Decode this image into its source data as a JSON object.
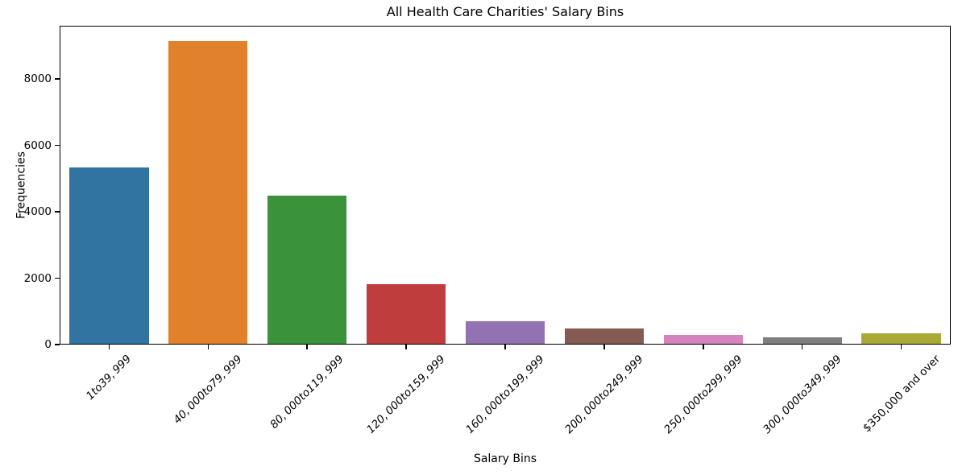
{
  "chart_data": {
    "type": "bar",
    "title": "All Health Care Charities' Salary Bins",
    "xlabel": "Salary Bins",
    "ylabel": "Frequencies",
    "categories": [
      "1to39, 999",
      "40, 000to79, 999",
      "80, 000to119, 999",
      "120, 000to159, 999",
      "160, 000to199, 999",
      "200, 000to249, 999",
      "250, 000to299, 999",
      "300, 000to349, 999",
      "$350,000 and over"
    ],
    "values": [
      5340,
      9150,
      4490,
      1820,
      710,
      490,
      290,
      210,
      330
    ],
    "bar_colors": [
      "#3274a1",
      "#e1812c",
      "#3a923a",
      "#c03d3e",
      "#9372b2",
      "#845b53",
      "#d684bd",
      "#7f7f7f",
      "#a9aa35"
    ],
    "yticks": [
      0,
      2000,
      4000,
      6000,
      8000
    ],
    "ytick_labels": [
      "0",
      "2000",
      "4000",
      "6000",
      "8000"
    ],
    "ylim": [
      0,
      9600
    ],
    "xtick_rotation_deg": 45,
    "xtick_italic": [
      true,
      true,
      true,
      true,
      true,
      true,
      true,
      true,
      false
    ],
    "bar_width_fraction": 0.8,
    "grid": false,
    "legend": null,
    "axis_color": "#000000",
    "background_color": "#ffffff"
  }
}
